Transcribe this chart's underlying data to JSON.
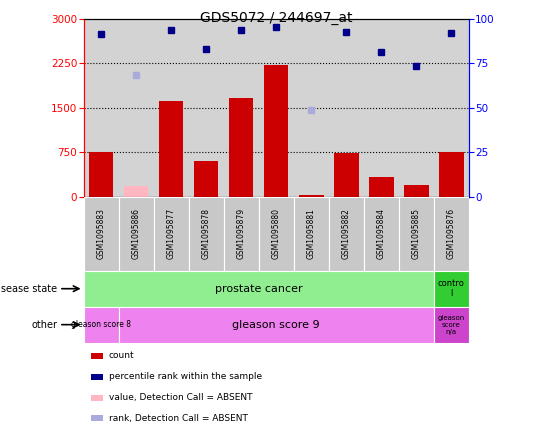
{
  "title": "GDS5072 / 244697_at",
  "samples": [
    "GSM1095883",
    "GSM1095886",
    "GSM1095877",
    "GSM1095878",
    "GSM1095879",
    "GSM1095880",
    "GSM1095881",
    "GSM1095882",
    "GSM1095884",
    "GSM1095885",
    "GSM1095876"
  ],
  "counts": [
    750,
    null,
    1620,
    600,
    1660,
    2230,
    30,
    740,
    330,
    200,
    750
  ],
  "counts_absent": [
    null,
    180,
    null,
    null,
    null,
    null,
    null,
    null,
    null,
    null,
    null
  ],
  "ranks_pct": [
    91.7,
    null,
    94.0,
    83.3,
    94.0,
    95.7,
    null,
    92.7,
    81.7,
    73.3,
    92.0
  ],
  "ranks_pct_absent": [
    null,
    68.3,
    null,
    null,
    null,
    null,
    49.0,
    null,
    null,
    null,
    null
  ],
  "ylim_left": [
    0,
    3000
  ],
  "ylim_right": [
    0,
    100
  ],
  "yticks_left": [
    0,
    750,
    1500,
    2250,
    3000
  ],
  "yticks_right": [
    0,
    25,
    50,
    75,
    100
  ],
  "bar_color": "#CC0000",
  "bar_absent_color": "#FFB6C1",
  "rank_color": "#00008B",
  "rank_absent_color": "#AAAADD",
  "bg_color": "#D3D3D3",
  "label_bg_color": "#C8C8C8",
  "disease_pc_color": "#90EE90",
  "disease_ctrl_color": "#32CD32",
  "other_g8_color": "#EE82EE",
  "other_g9_color": "#EE82EE",
  "other_gna_color": "#CC44CC"
}
